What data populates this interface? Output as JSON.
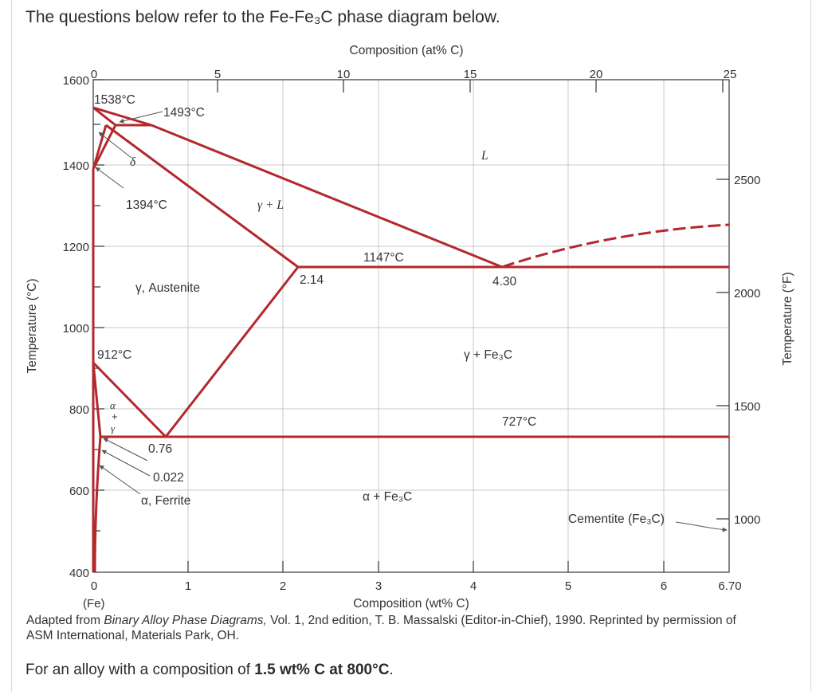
{
  "intro": "The questions below refer to the Fe-Fe₃C phase diagram below.",
  "credit": {
    "prefix": "Adapted from ",
    "title": "Binary Alloy Phase Diagrams,",
    "rest": " Vol. 1, 2nd edition, T. B. Massalski (Editor-in-Chief), 1990. Reprinted by permission of ASM International, Materials Park, OH."
  },
  "question": {
    "prefix": "For an alloy with a composition of ",
    "bold": "1.5 wt% C at 800°C",
    "suffix": "."
  },
  "diagram": {
    "top_axis_title": "Composition (at% C)",
    "top_ticks": [
      "0",
      "5",
      "10",
      "15",
      "20",
      "25"
    ],
    "bottom_axis_title": "Composition (wt% C)",
    "bottom_ticks": [
      "0",
      "1",
      "2",
      "3",
      "4",
      "5",
      "6",
      "6.70"
    ],
    "fe_label": "(Fe)",
    "left_axis_title": "Temperature (°C)",
    "left_ticks": [
      "1600",
      "1400",
      "1200",
      "1000",
      "800",
      "600",
      "400"
    ],
    "right_axis_title": "Temperature (°F)",
    "right_ticks": [
      "2500",
      "2000",
      "1500",
      "1000"
    ],
    "labels": {
      "t1538": "1538°C",
      "t1493": "1493°C",
      "delta": "δ",
      "t1394": "1394°C",
      "gamma_l": "γ + L",
      "liquid": "L",
      "t1147": "1147°C",
      "c214": "2.14",
      "c430": "4.30",
      "austenite": "γ, Austenite",
      "t912": "912°C",
      "gamma_fe3c": "γ + Fe₃C",
      "alpha": "α",
      "plus": "+",
      "gamma": "γ",
      "t727": "727°C",
      "c076": "0.76",
      "c0022": "0.022",
      "ferrite": "α, Ferrite",
      "alpha_fe3c": "α + Fe₃C",
      "cementite": "Cementite (Fe₃C)"
    },
    "line_color": "#b3282d",
    "grid_color": "#c8c8c8"
  }
}
